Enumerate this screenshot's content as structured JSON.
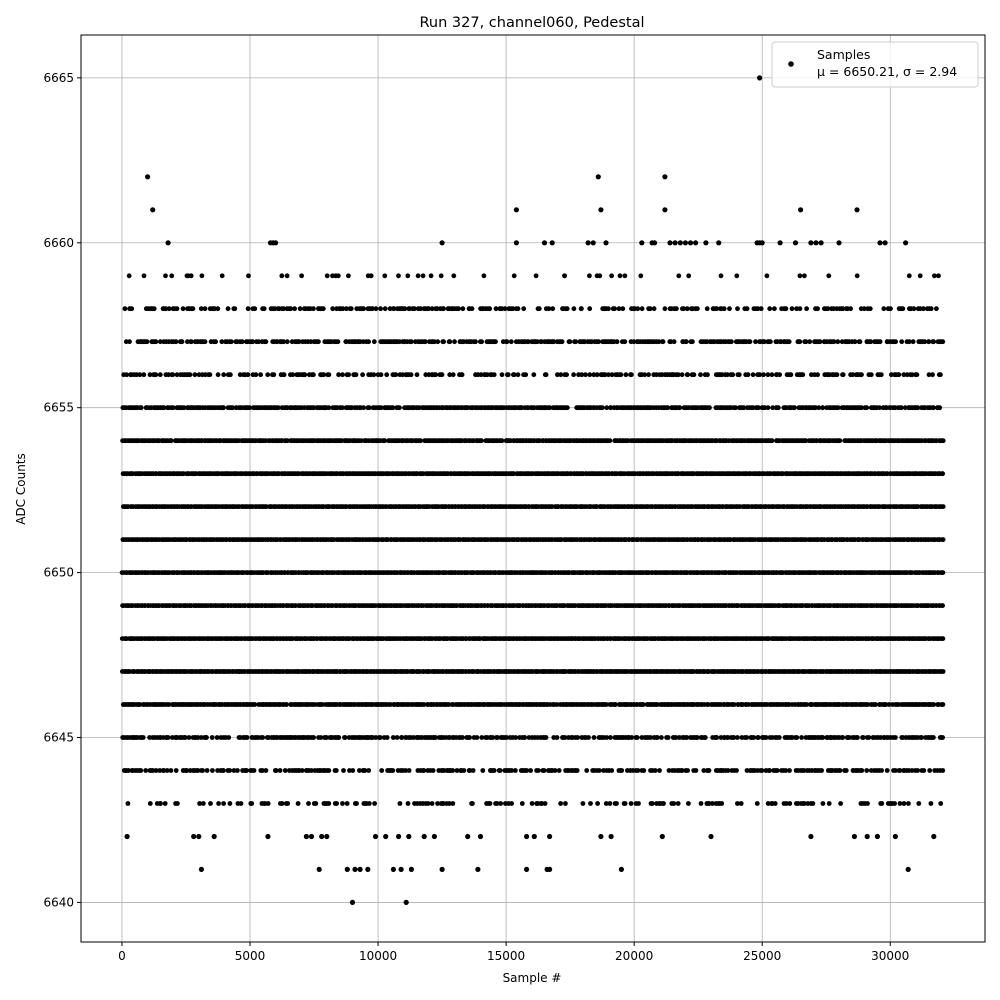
{
  "chart_data": {
    "type": "scatter",
    "title": "Run 327, channel060, Pedestal",
    "xlabel": "Sample #",
    "ylabel": "ADC Counts",
    "xlim": [
      -1600,
      33700
    ],
    "ylim": [
      6638.8,
      6666.3
    ],
    "xticks": [
      0,
      5000,
      10000,
      15000,
      20000,
      25000,
      30000
    ],
    "yticks": [
      6640,
      6645,
      6650,
      6655,
      6660,
      6665
    ],
    "grid": true,
    "legend": {
      "placement": "top-right",
      "entries": [
        {
          "label": "Samples",
          "stats": "μ = 6650.21, σ = 2.94"
        }
      ]
    },
    "series": [
      {
        "name": "Samples",
        "color": "#000000",
        "n_samples": 32100,
        "dense_levels": [
          6644,
          6645,
          6646,
          6647,
          6648,
          6649,
          6650,
          6651,
          6652,
          6653,
          6654,
          6655,
          6656,
          6657,
          6658
        ],
        "level_density": {
          "6643": 0.3,
          "6644": 0.55,
          "6645": 0.7,
          "6646": 0.9,
          "6647": 1.0,
          "6648": 1.0,
          "6649": 1.0,
          "6650": 1.0,
          "6651": 1.0,
          "6652": 1.0,
          "6653": 1.0,
          "6654": 0.95,
          "6655": 0.8,
          "6656": 0.45,
          "6657": 0.6,
          "6658": 0.4,
          "6659": 0.12
        },
        "sparse_points": [
          {
            "x": 200,
            "y": 6642
          },
          {
            "x": 2800,
            "y": 6642
          },
          {
            "x": 3000,
            "y": 6642
          },
          {
            "x": 3600,
            "y": 6642
          },
          {
            "x": 5700,
            "y": 6642
          },
          {
            "x": 7200,
            "y": 6642
          },
          {
            "x": 7400,
            "y": 6642
          },
          {
            "x": 7800,
            "y": 6642
          },
          {
            "x": 8000,
            "y": 6642
          },
          {
            "x": 9900,
            "y": 6642
          },
          {
            "x": 10300,
            "y": 6642
          },
          {
            "x": 10800,
            "y": 6642
          },
          {
            "x": 11200,
            "y": 6642
          },
          {
            "x": 11800,
            "y": 6642
          },
          {
            "x": 12200,
            "y": 6642
          },
          {
            "x": 13500,
            "y": 6642
          },
          {
            "x": 14000,
            "y": 6642
          },
          {
            "x": 15800,
            "y": 6642
          },
          {
            "x": 16100,
            "y": 6642
          },
          {
            "x": 16700,
            "y": 6642
          },
          {
            "x": 18700,
            "y": 6642
          },
          {
            "x": 19100,
            "y": 6642
          },
          {
            "x": 21100,
            "y": 6642
          },
          {
            "x": 23000,
            "y": 6642
          },
          {
            "x": 26900,
            "y": 6642
          },
          {
            "x": 28600,
            "y": 6642
          },
          {
            "x": 29100,
            "y": 6642
          },
          {
            "x": 29500,
            "y": 6642
          },
          {
            "x": 30200,
            "y": 6642
          },
          {
            "x": 31700,
            "y": 6642
          },
          {
            "x": 3100,
            "y": 6641
          },
          {
            "x": 7700,
            "y": 6641
          },
          {
            "x": 8800,
            "y": 6641
          },
          {
            "x": 9100,
            "y": 6641
          },
          {
            "x": 9300,
            "y": 6641
          },
          {
            "x": 9600,
            "y": 6641
          },
          {
            "x": 10600,
            "y": 6641
          },
          {
            "x": 10900,
            "y": 6641
          },
          {
            "x": 11300,
            "y": 6641
          },
          {
            "x": 12500,
            "y": 6641
          },
          {
            "x": 13900,
            "y": 6641
          },
          {
            "x": 15800,
            "y": 6641
          },
          {
            "x": 16600,
            "y": 6641
          },
          {
            "x": 16700,
            "y": 6641
          },
          {
            "x": 19500,
            "y": 6641
          },
          {
            "x": 30700,
            "y": 6641
          },
          {
            "x": 9000,
            "y": 6640
          },
          {
            "x": 11100,
            "y": 6640
          },
          {
            "x": 1800,
            "y": 6660
          },
          {
            "x": 5800,
            "y": 6660
          },
          {
            "x": 5900,
            "y": 6660
          },
          {
            "x": 6000,
            "y": 6660
          },
          {
            "x": 12500,
            "y": 6660
          },
          {
            "x": 15400,
            "y": 6660
          },
          {
            "x": 16500,
            "y": 6660
          },
          {
            "x": 16800,
            "y": 6660
          },
          {
            "x": 18200,
            "y": 6660
          },
          {
            "x": 18400,
            "y": 6660
          },
          {
            "x": 18900,
            "y": 6660
          },
          {
            "x": 20300,
            "y": 6660
          },
          {
            "x": 20700,
            "y": 6660
          },
          {
            "x": 20800,
            "y": 6660
          },
          {
            "x": 21400,
            "y": 6660
          },
          {
            "x": 21600,
            "y": 6660
          },
          {
            "x": 21800,
            "y": 6660
          },
          {
            "x": 22000,
            "y": 6660
          },
          {
            "x": 22200,
            "y": 6660
          },
          {
            "x": 22400,
            "y": 6660
          },
          {
            "x": 22800,
            "y": 6660
          },
          {
            "x": 23300,
            "y": 6660
          },
          {
            "x": 24800,
            "y": 6660
          },
          {
            "x": 24900,
            "y": 6660
          },
          {
            "x": 25000,
            "y": 6660
          },
          {
            "x": 25700,
            "y": 6660
          },
          {
            "x": 26300,
            "y": 6660
          },
          {
            "x": 26900,
            "y": 6660
          },
          {
            "x": 27100,
            "y": 6660
          },
          {
            "x": 27300,
            "y": 6660
          },
          {
            "x": 28000,
            "y": 6660
          },
          {
            "x": 29600,
            "y": 6660
          },
          {
            "x": 29800,
            "y": 6660
          },
          {
            "x": 30600,
            "y": 6660
          },
          {
            "x": 1200,
            "y": 6661
          },
          {
            "x": 15400,
            "y": 6661
          },
          {
            "x": 18700,
            "y": 6661
          },
          {
            "x": 21200,
            "y": 6661
          },
          {
            "x": 26500,
            "y": 6661
          },
          {
            "x": 28700,
            "y": 6661
          },
          {
            "x": 1000,
            "y": 6662
          },
          {
            "x": 18600,
            "y": 6662
          },
          {
            "x": 21200,
            "y": 6662
          },
          {
            "x": 24900,
            "y": 6665
          }
        ]
      }
    ]
  }
}
